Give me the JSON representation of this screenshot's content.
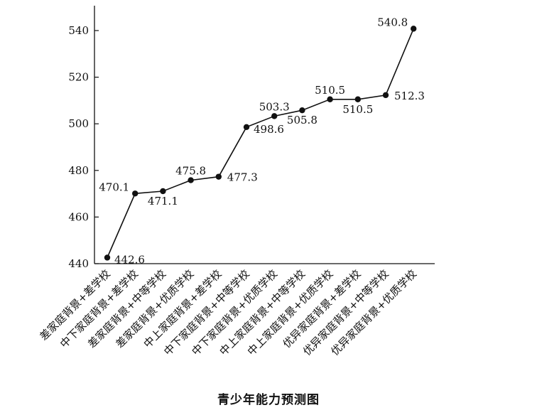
{
  "chart_data": {
    "type": "line",
    "title": "青少年能力预测图",
    "xlabel": "",
    "ylabel": "",
    "categories": [
      "差家庭背景+差学校",
      "中下家庭背景+差学校",
      "差家庭背景+中等学校",
      "差家庭背景+优质学校",
      "中上家庭背景+差学校",
      "中下家庭背景+中等学校",
      "中下家庭背景+优质学校",
      "中上家庭背景+中等学校",
      "中上家庭背景+优质学校",
      "优异家庭背景+差学校",
      "优异家庭背景+中等学校",
      "优异家庭背景+优质学校"
    ],
    "values": [
      442.6,
      470.1,
      471.1,
      475.8,
      477.3,
      498.6,
      503.3,
      505.8,
      510.5,
      510.5,
      512.3,
      540.8
    ],
    "label_position": [
      "right-below",
      "left-above",
      "below",
      "above",
      "right",
      "right-below",
      "above",
      "below",
      "above",
      "below",
      "right",
      "left-above"
    ],
    "ylim": [
      440,
      550
    ],
    "yticks": [
      "440",
      "460",
      "480",
      "500",
      "520",
      "540"
    ],
    "grid": false,
    "legend": "none",
    "line_color": "#111111"
  }
}
